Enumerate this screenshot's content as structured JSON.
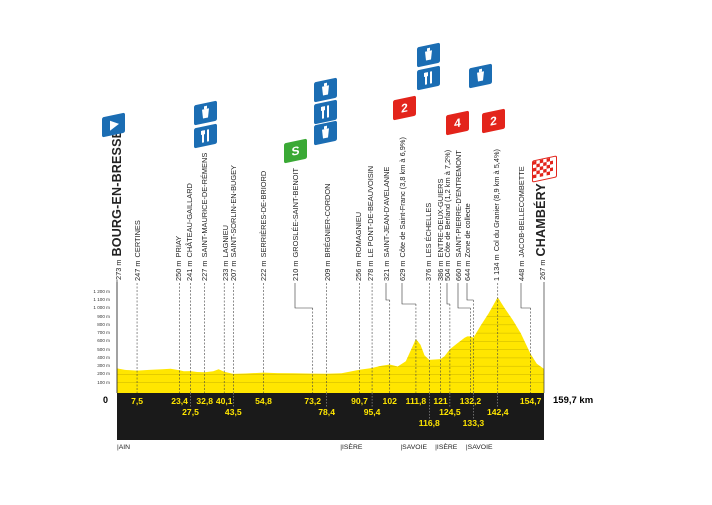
{
  "chart_data": {
    "type": "area",
    "title": "",
    "xlabel": "",
    "ylabel": "",
    "distance_total_label": "159,7 km",
    "start_label": "0",
    "xlim": [
      0,
      159.7
    ],
    "ylim": [
      0,
      1200
    ],
    "y_ticks": [
      "100 m",
      "200 m",
      "300 m",
      "400 m",
      "500 m",
      "600 m",
      "700 m",
      "800 m",
      "900 m",
      "1 000 m",
      "1 100 m",
      "1 200 m"
    ],
    "y_tick_values": [
      100,
      200,
      300,
      400,
      500,
      600,
      700,
      800,
      900,
      1000,
      1100,
      1200
    ],
    "fill_color": "#ffe600",
    "band_color": "#1a1a1a",
    "profile": [
      [
        0,
        273
      ],
      [
        3,
        255
      ],
      [
        7.5,
        247
      ],
      [
        12,
        255
      ],
      [
        17,
        262
      ],
      [
        20,
        270
      ],
      [
        23.4,
        250
      ],
      [
        25,
        240
      ],
      [
        27.5,
        241
      ],
      [
        30,
        230
      ],
      [
        32.8,
        227
      ],
      [
        36,
        240
      ],
      [
        38,
        262
      ],
      [
        40.1,
        233
      ],
      [
        43.5,
        207
      ],
      [
        48,
        212
      ],
      [
        54.8,
        222
      ],
      [
        60,
        216
      ],
      [
        66,
        214
      ],
      [
        73.2,
        210
      ],
      [
        78.4,
        209
      ],
      [
        84,
        214
      ],
      [
        90.7,
        256
      ],
      [
        95.4,
        278
      ],
      [
        98,
        300
      ],
      [
        102,
        321
      ],
      [
        105,
        296
      ],
      [
        108,
        360
      ],
      [
        111.8,
        629
      ],
      [
        113.5,
        560
      ],
      [
        115,
        430
      ],
      [
        116.8,
        376
      ],
      [
        121,
        386
      ],
      [
        122.5,
        420
      ],
      [
        124.5,
        504
      ],
      [
        127,
        570
      ],
      [
        130,
        645
      ],
      [
        131,
        660
      ],
      [
        132.2,
        660
      ],
      [
        133.3,
        644
      ],
      [
        136,
        790
      ],
      [
        139,
        940
      ],
      [
        142.4,
        1134
      ],
      [
        145,
        1000
      ],
      [
        148,
        860
      ],
      [
        151,
        700
      ],
      [
        154.7,
        448
      ],
      [
        157,
        330
      ],
      [
        159.7,
        267
      ]
    ],
    "waypoints": [
      {
        "km": 0,
        "alt": "273 m",
        "name": "BOURG-EN-BRESSE",
        "major": true
      },
      {
        "km": 7.5,
        "alt": "247 m",
        "name": "CERTINES"
      },
      {
        "km": 23.4,
        "alt": "250 m",
        "name": "PRIAY"
      },
      {
        "km": 27.5,
        "alt": "241 m",
        "name": "CHÂTEAU-GAILLARD"
      },
      {
        "km": 32.8,
        "alt": "227 m",
        "name": "SAINT-MAURICE-DE-RÉMENS"
      },
      {
        "km": 40.1,
        "alt": "233 m",
        "name": "LAGNIEU"
      },
      {
        "km": 43.5,
        "alt": "207 m",
        "name": "SAINT-SORLIN-EN-BUGEY"
      },
      {
        "km": 54.8,
        "alt": "222 m",
        "name": "SERRIÈRES-DE-BRIORD"
      },
      {
        "km": 73.2,
        "alt": "210 m",
        "name": "GROSLÉE-SAINT-BENOIT"
      },
      {
        "km": 78.4,
        "alt": "209 m",
        "name": "BRÉGNIER-CORDON"
      },
      {
        "km": 90.7,
        "alt": "256 m",
        "name": "ROMAGNIEU"
      },
      {
        "km": 95.4,
        "alt": "278 m",
        "name": "LE PONT-DE-BEAUVOISIN"
      },
      {
        "km": 102,
        "alt": "321 m",
        "name": "SAINT-JEAN-D'AVELANNE"
      },
      {
        "km": 111.8,
        "alt": "629 m",
        "name": "Côte de Saint-Franc (3,8 km à 6,9%)"
      },
      {
        "km": 116.8,
        "alt": "376 m",
        "name": "LES ÉCHELLES"
      },
      {
        "km": 121,
        "alt": "386 m",
        "name": "ENTRE-DEUX-GUIERS"
      },
      {
        "km": 124.5,
        "alt": "504 m",
        "name": "Côte de Berland (1,2 km à 7,2%)"
      },
      {
        "km": 132.2,
        "alt": "660 m",
        "name": "SAINT-PIERRE-D'ENTREMONT"
      },
      {
        "km": 133.3,
        "alt": "644 m",
        "name": "Zone de collecte"
      },
      {
        "km": 142.4,
        "alt": "1 134 m",
        "name": "Col du Granier (8,9 km à 5,4%)"
      },
      {
        "km": 154.7,
        "alt": "448 m",
        "name": "JACOB-BELLECOMBETTE"
      },
      {
        "km": 159.7,
        "alt": "267 m",
        "name": "CHAMBÉRY",
        "major": true
      }
    ],
    "km_labels": [
      {
        "km": 7.5,
        "text": "7,5",
        "row": 1
      },
      {
        "km": 23.4,
        "text": "23,4",
        "row": 1
      },
      {
        "km": 27.5,
        "text": "27,5",
        "row": 2
      },
      {
        "km": 32.8,
        "text": "32,8",
        "row": 1
      },
      {
        "km": 40.1,
        "text": "40,1",
        "row": 1
      },
      {
        "km": 43.5,
        "text": "43,5",
        "row": 2
      },
      {
        "km": 54.8,
        "text": "54,8",
        "row": 1
      },
      {
        "km": 73.2,
        "text": "73,2",
        "row": 1
      },
      {
        "km": 78.4,
        "text": "78,4",
        "row": 2
      },
      {
        "km": 90.7,
        "text": "90,7",
        "row": 1
      },
      {
        "km": 95.4,
        "text": "95,4",
        "row": 2
      },
      {
        "km": 102,
        "text": "102",
        "row": 1
      },
      {
        "km": 111.8,
        "text": "111,8",
        "row": 1
      },
      {
        "km": 116.8,
        "text": "116,8",
        "row": 3
      },
      {
        "km": 121,
        "text": "121",
        "row": 1
      },
      {
        "km": 124.5,
        "text": "124,5",
        "row": 2
      },
      {
        "km": 132.2,
        "text": "132,2",
        "row": 1
      },
      {
        "km": 133.3,
        "text": "133,3",
        "row": 3
      },
      {
        "km": 142.4,
        "text": "142,4",
        "row": 2
      },
      {
        "km": 154.7,
        "text": "154,7",
        "row": 1
      }
    ],
    "departments": [
      {
        "km": 0,
        "text": "|AIN"
      },
      {
        "km": 83.5,
        "text": "|ISÈRE"
      },
      {
        "km": 106,
        "text": "|SAVOIE"
      },
      {
        "km": 119,
        "text": "|ISÈRE"
      },
      {
        "km": 130.5,
        "text": "|SAVOIE"
      }
    ],
    "icons": [
      {
        "type": "start-flag",
        "at": "BOURG-EN-BRESSE",
        "color": "#1b6db3"
      },
      {
        "type": "drink",
        "at": "SAINT-MAURICE-DE-RÉMENS",
        "color": "#1b6db3"
      },
      {
        "type": "food",
        "at": "SAINT-MAURICE-DE-RÉMENS",
        "color": "#1b6db3"
      },
      {
        "type": "sprint",
        "label": "S",
        "at": "GROSLÉE-SAINT-BENOIT",
        "color": "#3aa935"
      },
      {
        "type": "drink",
        "at": "BRÉGNIER-CORDON",
        "color": "#1b6db3"
      },
      {
        "type": "food",
        "at": "BRÉGNIER-CORDON",
        "color": "#1b6db3"
      },
      {
        "type": "drink",
        "at": "BRÉGNIER-CORDON",
        "color": "#1b6db3"
      },
      {
        "type": "climb",
        "label": "2",
        "at": "Côte de Saint-Franc",
        "color": "#e3241b"
      },
      {
        "type": "drink",
        "at": "LES ÉCHELLES",
        "color": "#1b6db3"
      },
      {
        "type": "food",
        "at": "LES ÉCHELLES",
        "color": "#1b6db3"
      },
      {
        "type": "climb",
        "label": "4",
        "at": "Côte de Berland",
        "color": "#e3241b"
      },
      {
        "type": "drink",
        "at": "Zone de collecte",
        "color": "#1b6db3"
      },
      {
        "type": "climb",
        "label": "2",
        "at": "Col du Granier",
        "color": "#e3241b"
      },
      {
        "type": "finish-flag",
        "at": "CHAMBÉRY",
        "color": "#e3241b"
      }
    ]
  }
}
